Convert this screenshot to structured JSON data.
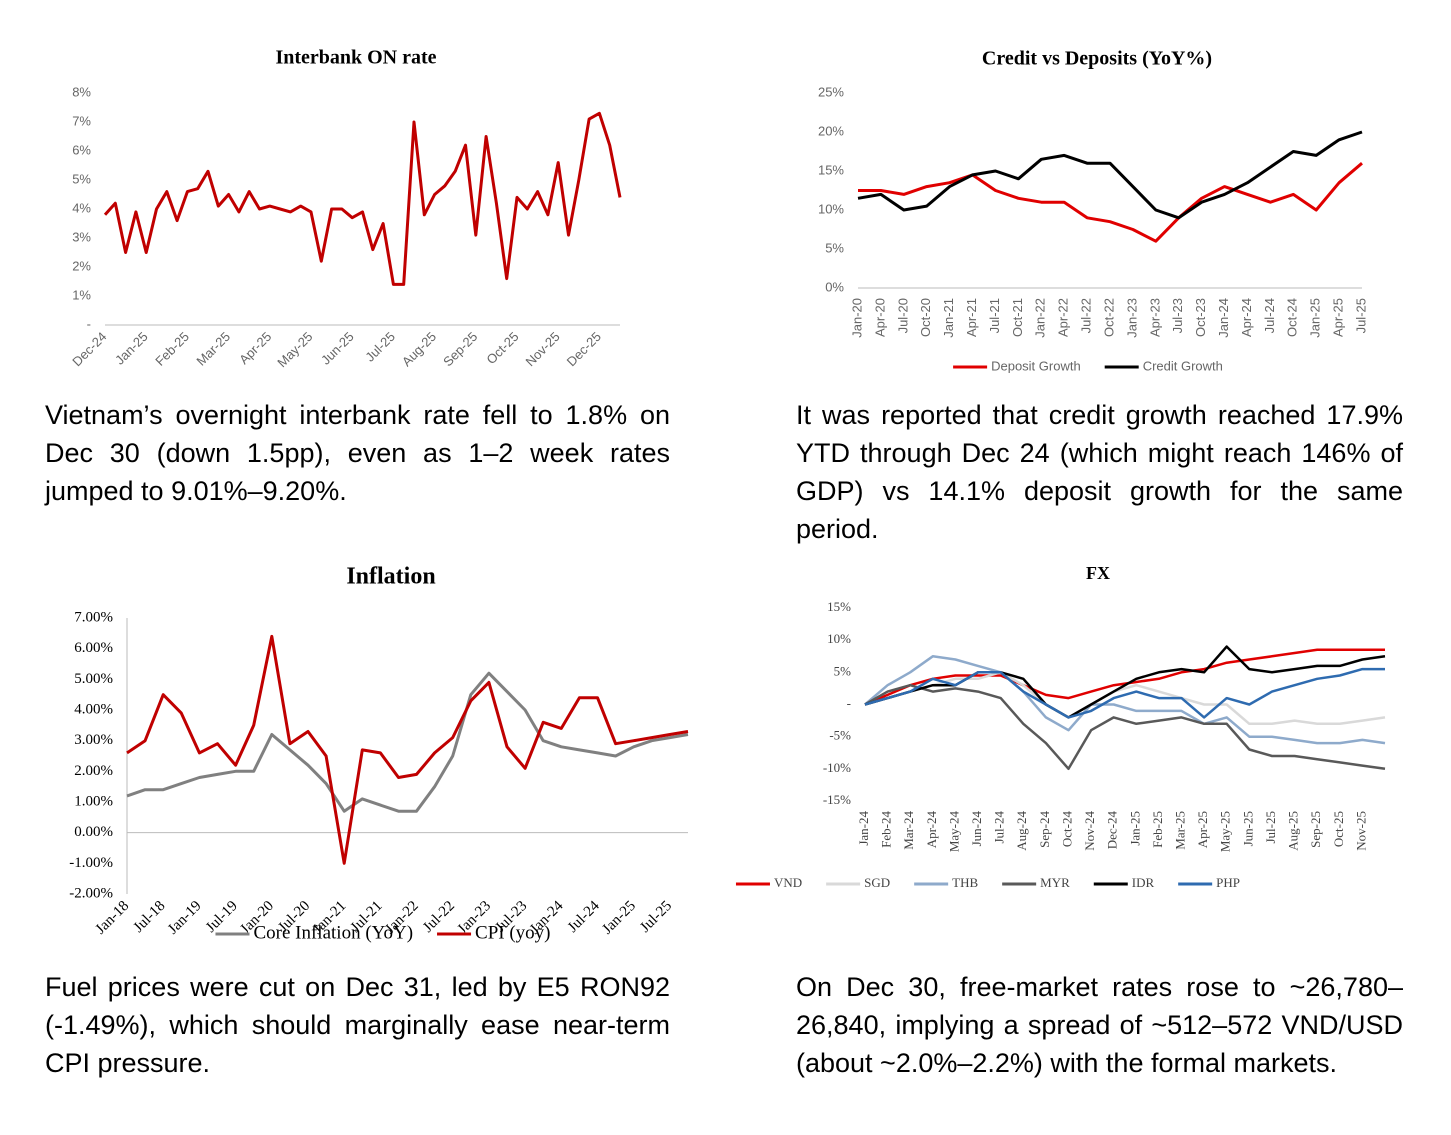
{
  "chart_data": [
    {
      "type": "line",
      "title": "Interbank ON rate",
      "categories": [
        "Dec-24",
        null,
        null,
        null,
        "Jan-25",
        null,
        null,
        null,
        "Feb-25",
        null,
        null,
        null,
        "Mar-25",
        null,
        null,
        null,
        "Apr-25",
        null,
        null,
        null,
        "May-25",
        null,
        null,
        null,
        "Jun-25",
        null,
        null,
        null,
        "Jul-25",
        null,
        null,
        null,
        "Aug-25",
        null,
        null,
        null,
        "Sep-25",
        null,
        null,
        null,
        "Oct-25",
        null,
        null,
        null,
        "Nov-25",
        null,
        null,
        null,
        "Dec-25",
        null,
        null
      ],
      "series": [
        {
          "name": null,
          "color": "#c00000",
          "values": [
            3.8,
            4.2,
            2.5,
            3.9,
            2.5,
            4.0,
            4.6,
            3.6,
            4.6,
            4.7,
            5.3,
            4.1,
            4.5,
            3.9,
            4.6,
            4.0,
            4.1,
            4.0,
            3.9,
            4.1,
            3.9,
            2.2,
            4.0,
            4.0,
            3.7,
            3.9,
            2.6,
            3.5,
            1.4,
            1.4,
            7.0,
            3.8,
            4.5,
            4.8,
            5.3,
            6.2,
            3.1,
            6.5,
            4.2,
            1.6,
            4.4,
            4.0,
            4.6,
            3.8,
            5.6,
            3.1,
            5.0,
            7.1,
            7.3,
            6.2,
            4.4
          ]
        }
      ],
      "ylim": [
        0,
        8
      ],
      "yticks": [
        {
          "value": 0,
          "label": "-"
        },
        {
          "value": 1,
          "label": "1%"
        },
        {
          "value": 2,
          "label": "2%"
        },
        {
          "value": 3,
          "label": "3%"
        },
        {
          "value": 4,
          "label": "4%"
        },
        {
          "value": 5,
          "label": "5%"
        },
        {
          "value": 6,
          "label": "6%"
        },
        {
          "value": 7,
          "label": "7%"
        },
        {
          "value": 8,
          "label": "8%"
        }
      ],
      "grid": false
    },
    {
      "type": "line",
      "title": "Credit vs Deposits (YoY%)",
      "categories": [
        "Jan-20",
        "Apr-20",
        "Jul-20",
        "Oct-20",
        "Jan-21",
        "Apr-21",
        "Jul-21",
        "Oct-21",
        "Jan-22",
        "Apr-22",
        "Jul-22",
        "Oct-22",
        "Jan-23",
        "Apr-23",
        "Jul-23",
        "Oct-23",
        "Jan-24",
        "Apr-24",
        "Jul-24",
        "Oct-24",
        "Jan-25",
        "Apr-25",
        "Jul-25"
      ],
      "series": [
        {
          "name": "Deposit Growth",
          "color": "#e00000",
          "values": [
            12.5,
            12.5,
            12,
            13,
            13.5,
            14.5,
            12.5,
            11.5,
            11,
            11,
            9,
            8.5,
            7.5,
            6,
            9,
            11.5,
            13,
            12,
            11,
            12,
            10,
            13.5,
            16
          ]
        },
        {
          "name": "Credit Growth",
          "color": "#000000",
          "values": [
            11.5,
            12,
            10,
            10.5,
            13,
            14.5,
            15,
            14,
            16.5,
            17,
            16,
            16,
            13,
            10,
            9,
            11,
            12,
            13.5,
            15.5,
            17.5,
            17,
            19,
            20
          ]
        }
      ],
      "ylim": [
        0,
        25
      ],
      "yticks": [
        {
          "value": 0,
          "label": "0%"
        },
        {
          "value": 5,
          "label": "5%"
        },
        {
          "value": 10,
          "label": "10%"
        },
        {
          "value": 15,
          "label": "15%"
        },
        {
          "value": 20,
          "label": "20%"
        },
        {
          "value": 25,
          "label": "25%"
        }
      ],
      "grid": false,
      "legend": "bottom"
    },
    {
      "type": "line",
      "title": "Inflation",
      "categories": [
        "Jan-18",
        null,
        "Jul-18",
        null,
        "Jan-19",
        null,
        "Jul-19",
        null,
        "Jan-20",
        null,
        "Jul-20",
        null,
        "Jan-21",
        null,
        "Jul-21",
        null,
        "Jan-22",
        null,
        "Jul-22",
        null,
        "Jan-23",
        null,
        "Jul-23",
        null,
        "Jan-24",
        null,
        "Jul-24",
        null,
        "Jan-25",
        null,
        "Jul-25",
        null
      ],
      "series": [
        {
          "name": "Core Inflation (YoY)",
          "color": "#808080",
          "values": [
            1.2,
            1.4,
            1.4,
            1.6,
            1.8,
            1.9,
            2.0,
            2.0,
            3.2,
            2.7,
            2.2,
            1.6,
            0.7,
            1.1,
            0.9,
            0.7,
            0.7,
            1.5,
            2.5,
            4.5,
            5.2,
            4.6,
            4.0,
            3.0,
            2.8,
            2.7,
            2.6,
            2.5,
            2.8,
            3.0,
            3.1,
            3.2
          ]
        },
        {
          "name": "CPI (yoy)",
          "color": "#c00000",
          "values": [
            2.6,
            3.0,
            4.5,
            3.9,
            2.6,
            2.9,
            2.2,
            3.5,
            6.4,
            2.9,
            3.3,
            2.5,
            -1.0,
            2.7,
            2.6,
            1.8,
            1.9,
            2.6,
            3.1,
            4.3,
            4.9,
            2.8,
            2.1,
            3.6,
            3.4,
            4.4,
            4.4,
            2.9,
            3.0,
            3.1,
            3.2,
            3.3
          ]
        }
      ],
      "ylim": [
        -2,
        7
      ],
      "yticks": [
        {
          "value": -2,
          "label": "-2.00%"
        },
        {
          "value": -1,
          "label": "-1.00%"
        },
        {
          "value": 0,
          "label": "0.00%"
        },
        {
          "value": 1,
          "label": "1.00%"
        },
        {
          "value": 2,
          "label": "2.00%"
        },
        {
          "value": 3,
          "label": "3.00%"
        },
        {
          "value": 4,
          "label": "4.00%"
        },
        {
          "value": 5,
          "label": "5.00%"
        },
        {
          "value": 6,
          "label": "6.00%"
        },
        {
          "value": 7,
          "label": "7.00%"
        }
      ],
      "grid": false,
      "legend": "bottom"
    },
    {
      "type": "line",
      "title": "FX",
      "categories": [
        "Jan-24",
        "Feb-24",
        "Mar-24",
        "Apr-24",
        "May-24",
        "Jun-24",
        "Jul-24",
        "Aug-24",
        "Sep-24",
        "Oct-24",
        "Nov-24",
        "Dec-24",
        "Jan-25",
        "Feb-25",
        "Mar-25",
        "Apr-25",
        "May-25",
        "Jun-25",
        "Jul-25",
        "Aug-25",
        "Sep-25",
        "Oct-25",
        "Nov-25",
        null
      ],
      "series": [
        {
          "name": "VND",
          "color": "#e00000",
          "values": [
            0,
            1.5,
            3,
            4,
            4.5,
            4.5,
            4.5,
            3,
            1.5,
            1,
            2,
            3,
            3.5,
            4,
            5,
            5.5,
            6.5,
            7,
            7.5,
            8,
            8.5,
            8.5,
            8.5,
            8.5
          ]
        },
        {
          "name": "SGD",
          "color": "#d9d9d9",
          "values": [
            0,
            1,
            2,
            3,
            4,
            4,
            5,
            3,
            0,
            -2,
            0,
            2,
            3,
            2,
            1,
            0,
            0,
            -3,
            -3,
            -2.5,
            -3,
            -3,
            -2.5,
            -2
          ]
        },
        {
          "name": "THB",
          "color": "#8eaacb",
          "values": [
            0,
            3,
            5,
            7.5,
            7,
            6,
            5,
            2,
            -2,
            -4,
            0,
            0,
            -1,
            -1,
            -1,
            -3,
            -2,
            -5,
            -5,
            -5.5,
            -6,
            -6,
            -5.5,
            -6
          ]
        },
        {
          "name": "MYR",
          "color": "#595959",
          "values": [
            0,
            2,
            3,
            2,
            2.5,
            2,
            1,
            -3,
            -6,
            -10,
            -4,
            -2,
            -3,
            -2.5,
            -2,
            -3,
            -3,
            -7,
            -8,
            -8,
            -8.5,
            -9,
            -9.5,
            -10
          ]
        },
        {
          "name": "IDR",
          "color": "#000000",
          "values": [
            0,
            1,
            2,
            3,
            3,
            5,
            5,
            4,
            0,
            -2,
            0,
            2,
            4,
            5,
            5.5,
            5,
            9,
            5.5,
            5,
            5.5,
            6,
            6,
            7,
            7.5
          ]
        },
        {
          "name": "PHP",
          "color": "#2e6bb0",
          "values": [
            0,
            1,
            2,
            4,
            3,
            5,
            5,
            2,
            0,
            -2,
            -1,
            1,
            2,
            1,
            1,
            -2,
            1,
            0,
            2,
            3,
            4,
            4.5,
            5.5,
            5.5
          ]
        }
      ],
      "ylim": [
        -15,
        15
      ],
      "yticks": [
        {
          "value": -15,
          "label": "-15%"
        },
        {
          "value": -10,
          "label": "-10%"
        },
        {
          "value": -5,
          "label": "-5%"
        },
        {
          "value": 0,
          "label": "-"
        },
        {
          "value": 5,
          "label": "5%"
        },
        {
          "value": 10,
          "label": "10%"
        },
        {
          "value": 15,
          "label": "15%"
        }
      ],
      "grid": false,
      "legend": "bottom"
    }
  ],
  "captions": [
    "Vietnam’s overnight interbank rate fell to 1.8% on Dec 30 (down 1.5pp), even as 1–2 week rates jumped to 9.01%–9.20%.",
    "It was reported that credit growth reached 17.9% YTD through Dec 24 (which might reach 146% of GDP) vs 14.1% deposit growth for the same period.",
    "Fuel prices were cut on Dec 31, led by E5 RON92 (-1.49%), which should marginally ease near-term CPI pressure.",
    "On Dec 30, free-market rates rose to ~26,780–26,840, implying a spread of ~512–572 VND/USD (about ~2.0%–2.2%) with the formal markets."
  ]
}
